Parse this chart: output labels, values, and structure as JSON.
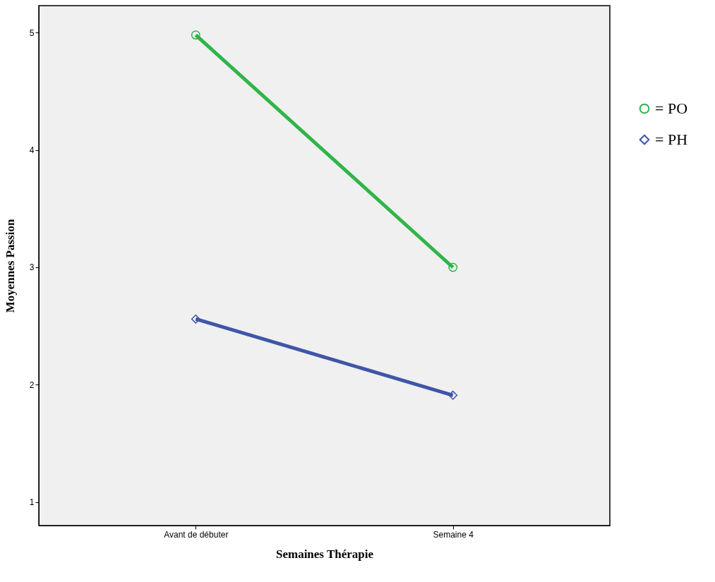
{
  "chart_data": {
    "type": "line",
    "xlabel": "Semaines Thérapie",
    "ylabel": "Moyennes Passion",
    "categories": [
      "Avant de débuter",
      "Semaine 4"
    ],
    "series": [
      {
        "name": "= PO",
        "color": "#2fb548",
        "marker": "circle",
        "values": [
          4.98,
          3.0
        ]
      },
      {
        "name": "= PH",
        "color": "#3f55a8",
        "marker": "diamond",
        "values": [
          2.56,
          1.91
        ]
      }
    ],
    "ylim": [
      0.8,
      5.23
    ],
    "yticks": [
      1,
      2,
      3,
      4,
      5
    ],
    "grid": false,
    "legend": "right",
    "line_style": "solid"
  }
}
